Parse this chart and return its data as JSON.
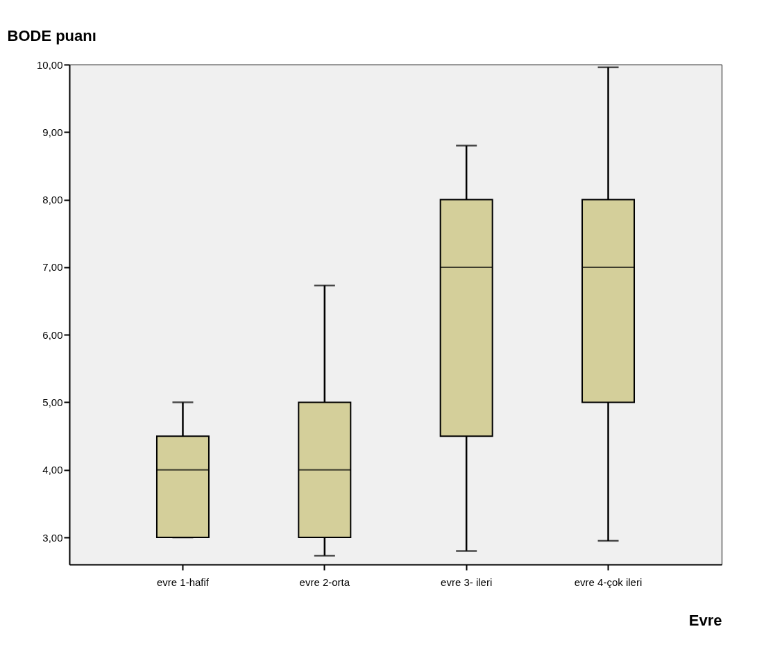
{
  "chart_data": {
    "type": "box",
    "xlabel": "Evre",
    "ylabel": "BODE puanı",
    "categories": [
      "evre 1-hafif",
      "evre 2-orta",
      "evre 3- ileri",
      "evre 4-çok ileri"
    ],
    "boxes": [
      {
        "low": 3,
        "q1": 3,
        "median": 4,
        "q3": 4.5,
        "high": 5
      },
      {
        "low": 2.73,
        "q1": 3,
        "median": 4,
        "q3": 5,
        "high": 6.73
      },
      {
        "low": 2.8,
        "q1": 4.5,
        "median": 7,
        "q3": 8,
        "high": 8.8
      },
      {
        "low": 2.95,
        "q1": 5,
        "median": 7,
        "q3": 8,
        "high": 9.96
      }
    ],
    "color": "#d4cf9a",
    "ylim": [
      2.6,
      10
    ],
    "yticks": [
      {
        "value": 3,
        "label": "3,00"
      },
      {
        "value": 4,
        "label": "4,00"
      },
      {
        "value": 5,
        "label": "5,00"
      },
      {
        "value": 6,
        "label": "6,00"
      },
      {
        "value": 7,
        "label": "7,00"
      },
      {
        "value": 8,
        "label": "8,00"
      },
      {
        "value": 9,
        "label": "9,00"
      },
      {
        "value": 10,
        "label": "10,00"
      }
    ],
    "grid": false
  }
}
